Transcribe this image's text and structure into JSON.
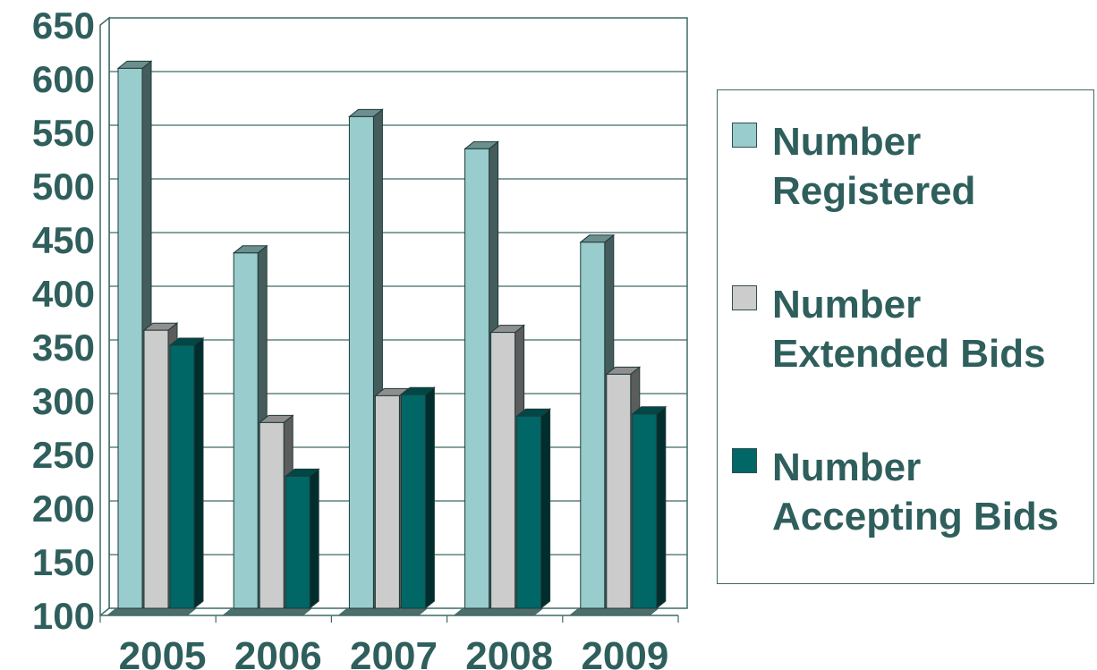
{
  "chart_data": {
    "type": "bar",
    "categories": [
      "2005",
      "2006",
      "2007",
      "2008",
      "2009"
    ],
    "series": [
      {
        "name": "Number Registered",
        "color": "#99cccc",
        "values": [
          603,
          431,
          558,
          528,
          441
        ]
      },
      {
        "name": "Number Extended Bids",
        "color": "#cccccc",
        "values": [
          359,
          273,
          298,
          357,
          318
        ]
      },
      {
        "name": "Number Accepting Bids",
        "color": "#006666",
        "values": [
          345,
          223,
          299,
          279,
          281
        ]
      }
    ],
    "ylim": [
      100,
      650
    ],
    "yticks": [
      "100",
      "150",
      "200",
      "250",
      "300",
      "350",
      "400",
      "450",
      "500",
      "550",
      "600",
      "650"
    ],
    "grid": true,
    "legend_position": "right",
    "title": "",
    "xlabel": "",
    "ylabel": ""
  },
  "legend": {
    "items": [
      {
        "lines": [
          "Number",
          "Registered"
        ],
        "color": "#99cccc"
      },
      {
        "lines": [
          "Number",
          "Extended Bids"
        ],
        "color": "#cccccc"
      },
      {
        "lines": [
          "Number",
          "Accepting Bids"
        ],
        "color": "#006666"
      }
    ]
  }
}
